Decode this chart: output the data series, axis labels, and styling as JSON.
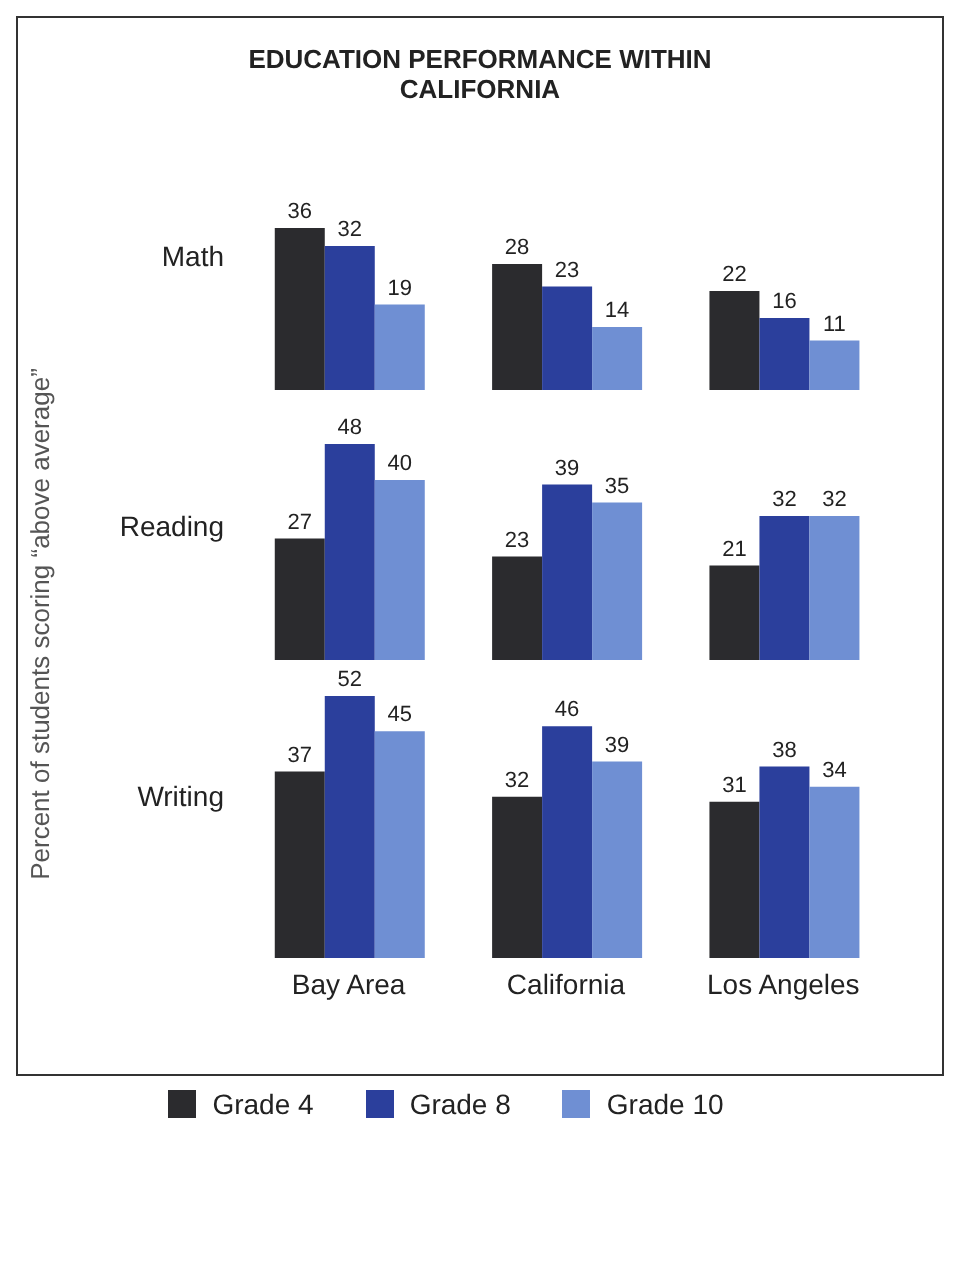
{
  "chart_data": [
    {
      "type": "bar",
      "title": "EDUCATION PERFORMANCE WITHIN CALIFORNIA",
      "ylabel": "Percent of students scoring “above average”",
      "subtitle": "Math",
      "categories": [
        null,
        null,
        null
      ],
      "tick_labels": false,
      "data_labels": true,
      "series": [
        {
          "color": "#2b2b2e",
          "values": [
            36,
            28,
            22
          ]
        },
        {
          "color": "#2b3f9c",
          "values": [
            32,
            23,
            16
          ]
        },
        {
          "color": "#6f8fd3",
          "values": [
            19,
            14,
            11
          ]
        }
      ]
    },
    {
      "type": "bar",
      "subtitle": "Reading",
      "categories": [
        null,
        null,
        null
      ],
      "tick_labels": false,
      "data_labels": true,
      "series": [
        {
          "color": "#2b2b2e",
          "values": [
            27,
            23,
            21
          ]
        },
        {
          "color": "#2b3f9c",
          "values": [
            48,
            39,
            32
          ]
        },
        {
          "color": "#6f8fd3",
          "values": [
            40,
            35,
            32
          ]
        }
      ]
    },
    {
      "type": "bar",
      "subtitle": "Writing",
      "categories": [
        "Bay Area",
        "California",
        "Los Angeles"
      ],
      "tick_labels": "x",
      "data_labels": true,
      "legend": "bottom",
      "series": [
        {
          "name": "Grade 4",
          "color": "#2b2b2e",
          "values": [
            37,
            32,
            31
          ]
        },
        {
          "name": "Grade 8",
          "color": "#2b3f9c",
          "values": [
            52,
            46,
            38
          ]
        },
        {
          "name": "Grade 10",
          "color": "#6f8fd3",
          "values": [
            45,
            39,
            34
          ]
        }
      ]
    }
  ]
}
